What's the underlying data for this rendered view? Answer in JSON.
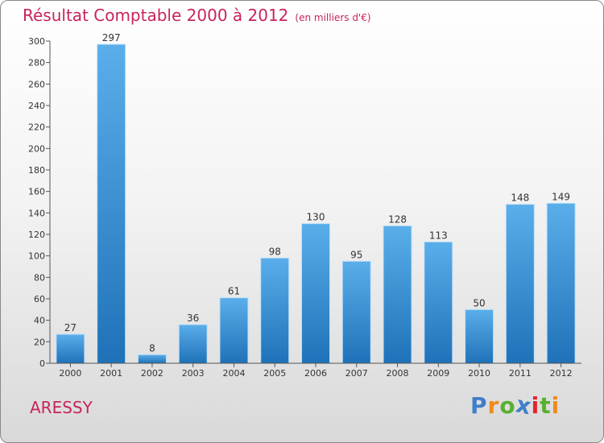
{
  "header": {
    "title": "Résultat Comptable 2000 à 2012",
    "subtitle": "(en milliers d'€)"
  },
  "location": "ARESSY",
  "brand": {
    "name": "Proxiti",
    "letters": [
      {
        "ch": "P",
        "color": "#3f7fc9"
      },
      {
        "ch": "r",
        "color": "#f08a1c"
      },
      {
        "ch": "o",
        "color": "#58b030"
      },
      {
        "ch": "x",
        "color": "#3f7fc9"
      },
      {
        "ch": "i",
        "color": "#e6232a"
      },
      {
        "ch": "t",
        "color": "#58b030"
      },
      {
        "ch": "i",
        "color": "#f08a1c"
      }
    ]
  },
  "colors": {
    "accent": "#c8245a",
    "bar_top": "#5aaeea",
    "bar_bottom": "#1f72b8",
    "axis": "#555555"
  },
  "chart_data": {
    "type": "bar",
    "title": "Résultat Comptable 2000 à 2012",
    "subtitle": "(en milliers d'€)",
    "categories": [
      "2000",
      "2001",
      "2002",
      "2003",
      "2004",
      "2005",
      "2006",
      "2007",
      "2008",
      "2009",
      "2010",
      "2011",
      "2012"
    ],
    "values": [
      27,
      297,
      8,
      36,
      61,
      98,
      130,
      95,
      128,
      113,
      50,
      148,
      149
    ],
    "ylim": [
      0,
      300
    ],
    "yticks": [
      0,
      20,
      40,
      60,
      80,
      100,
      120,
      140,
      160,
      180,
      200,
      220,
      240,
      260,
      280,
      300
    ],
    "xlabel": "",
    "ylabel": "",
    "grid": false,
    "legend": "none"
  }
}
